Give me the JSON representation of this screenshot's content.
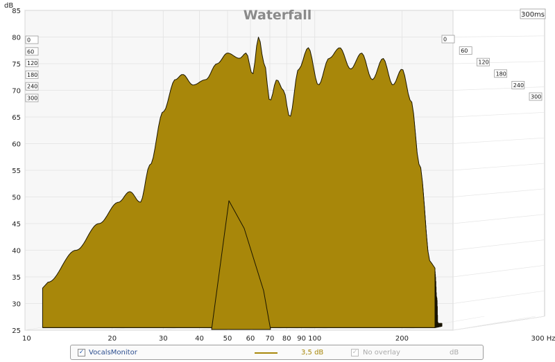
{
  "chart_data": {
    "type": "area",
    "title": "Waterfall",
    "ylabel": "dB",
    "xlabel": "Hz",
    "x_scale": "log",
    "xlim": [
      10,
      300
    ],
    "ylim": [
      25,
      85
    ],
    "x_ticks": [
      10,
      20,
      30,
      40,
      50,
      60,
      70,
      80,
      90,
      100,
      200,
      300
    ],
    "x_tick_labels": [
      "10",
      "20",
      "30",
      "40",
      "50",
      "60",
      "70",
      "80",
      "90",
      "100",
      "200",
      "300 Hz"
    ],
    "y_ticks": [
      25,
      30,
      35,
      40,
      45,
      50,
      55,
      60,
      65,
      70,
      75,
      80,
      85
    ],
    "time_unit_label": "300ms",
    "time_labels": [
      "0",
      "60",
      "120",
      "180",
      "240",
      "300"
    ],
    "fill_color": "#a8870a",
    "grid": true,
    "front_slice": {
      "name": "0 ms",
      "x": [
        12,
        15,
        18,
        21,
        23,
        25,
        27,
        30,
        33,
        35,
        38,
        42,
        46,
        50,
        55,
        58,
        61,
        64,
        67,
        70,
        74,
        78,
        82,
        88,
        95,
        103,
        112,
        122,
        133,
        145,
        158,
        172,
        186,
        200,
        215,
        230,
        250
      ],
      "y": [
        34,
        40,
        45,
        49,
        51,
        49,
        56,
        66,
        72,
        73,
        71,
        72,
        75,
        77,
        76,
        77,
        73,
        80,
        75,
        68,
        72,
        70,
        65,
        74,
        78,
        71,
        76,
        78,
        74,
        77,
        72,
        76,
        71,
        74,
        68,
        56,
        38
      ]
    }
  },
  "legend": {
    "measurement_name": "VocalsMonitor",
    "offset": "3,5 dB",
    "overlay": "No overlay",
    "unit": "dB",
    "color": "#a8870a"
  }
}
